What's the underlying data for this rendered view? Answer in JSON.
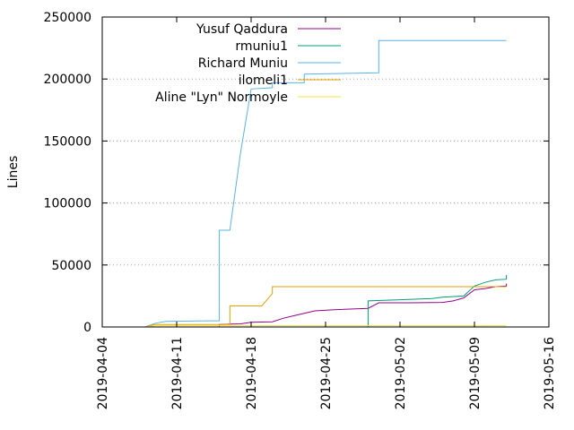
{
  "chart_data": {
    "type": "line",
    "title": "",
    "xlabel": "",
    "ylabel": "Lines",
    "xlim": [
      "2019-04-04",
      "2019-05-16"
    ],
    "ylim": [
      0,
      250000
    ],
    "x_ticks": [
      "2019-04-04",
      "2019-04-11",
      "2019-04-18",
      "2019-04-25",
      "2019-05-02",
      "2019-05-09",
      "2019-05-16"
    ],
    "y_ticks": [
      0,
      50000,
      100000,
      150000,
      200000,
      250000
    ],
    "y_tick_labels": [
      "0",
      "50000",
      "100000",
      "150000",
      "200000",
      "250000"
    ],
    "grid": "horizontal dotted at y ticks",
    "legend_placement": "top",
    "series": [
      {
        "name": "Yusuf Qaddura",
        "color": "#94008b",
        "points": [
          [
            "2019-04-15",
            0
          ],
          [
            "2019-04-15",
            2000
          ],
          [
            "2019-04-17",
            2500
          ],
          [
            "2019-04-18",
            3800
          ],
          [
            "2019-04-20",
            4200
          ],
          [
            "2019-04-21",
            7000
          ],
          [
            "2019-04-22",
            9000
          ],
          [
            "2019-04-23",
            11000
          ],
          [
            "2019-04-24",
            13000
          ],
          [
            "2019-04-26",
            14000
          ],
          [
            "2019-04-29",
            15000
          ],
          [
            "2019-04-30",
            19500
          ],
          [
            "2019-05-03",
            19500
          ],
          [
            "2019-05-06",
            19800
          ],
          [
            "2019-05-07",
            21000
          ],
          [
            "2019-05-08",
            23500
          ],
          [
            "2019-05-09",
            30000
          ],
          [
            "2019-05-10",
            31000
          ],
          [
            "2019-05-11",
            32500
          ],
          [
            "2019-05-12",
            33000
          ],
          [
            "2019-05-12",
            35000
          ]
        ]
      },
      {
        "name": "rmuniu1",
        "color": "#009e73",
        "points": [
          [
            "2019-04-29",
            0
          ],
          [
            "2019-04-29",
            21000
          ],
          [
            "2019-05-02",
            22000
          ],
          [
            "2019-05-05",
            23000
          ],
          [
            "2019-05-06",
            24000
          ],
          [
            "2019-05-08",
            25000
          ],
          [
            "2019-05-09",
            33000
          ],
          [
            "2019-05-10",
            36000
          ],
          [
            "2019-05-11",
            38000
          ],
          [
            "2019-05-12",
            38500
          ],
          [
            "2019-05-12",
            42000
          ]
        ]
      },
      {
        "name": "Richard Muniu",
        "color": "#56b4e9",
        "points": [
          [
            "2019-04-08",
            0
          ],
          [
            "2019-04-09",
            3000
          ],
          [
            "2019-04-10",
            4500
          ],
          [
            "2019-04-14",
            5000
          ],
          [
            "2019-04-15",
            5000
          ],
          [
            "2019-04-15",
            77000
          ],
          [
            "2019-04-15",
            78000
          ],
          [
            "2019-04-16",
            78000
          ],
          [
            "2019-04-17",
            140000
          ],
          [
            "2019-04-18",
            192000
          ],
          [
            "2019-04-20",
            193000
          ],
          [
            "2019-04-20",
            197000
          ],
          [
            "2019-04-23",
            197000
          ],
          [
            "2019-04-23",
            204000
          ],
          [
            "2019-04-30",
            205000
          ],
          [
            "2019-04-30",
            231000
          ],
          [
            "2019-05-12",
            231000
          ]
        ]
      },
      {
        "name": "ilomeli1",
        "color": "#e69f00",
        "points": [
          [
            "2019-04-08",
            0
          ],
          [
            "2019-04-09",
            2000
          ],
          [
            "2019-04-15",
            2000
          ],
          [
            "2019-04-16",
            2000
          ],
          [
            "2019-04-16",
            17000
          ],
          [
            "2019-04-19",
            17000
          ],
          [
            "2019-04-20",
            27000
          ],
          [
            "2019-04-20",
            32500
          ],
          [
            "2019-05-12",
            32500
          ]
        ]
      },
      {
        "name": "Aline \"Lyn\" Normoyle",
        "color": "#f0e442",
        "points": [
          [
            "2019-04-08",
            0
          ],
          [
            "2019-04-09",
            1000
          ],
          [
            "2019-05-12",
            1000
          ]
        ]
      }
    ]
  }
}
